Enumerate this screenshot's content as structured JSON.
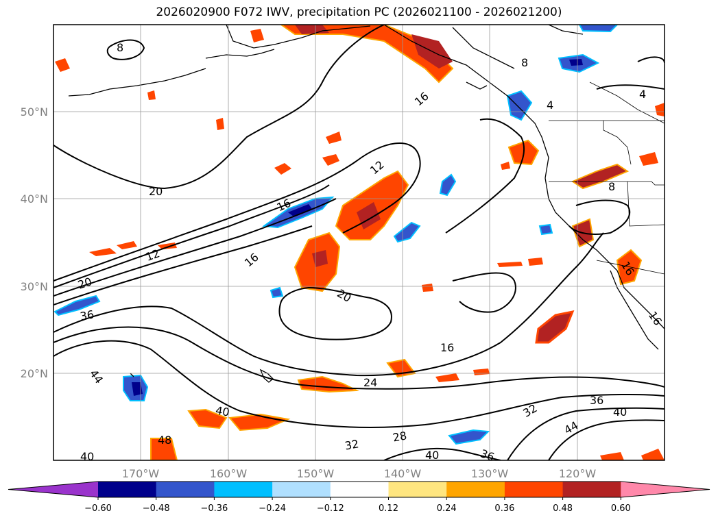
{
  "title": "2026020900 F072 IWV, precipitation PC (2026021100 - 2026021200)",
  "lat_labels": [
    "50°N",
    "40°N",
    "30°N",
    "20°N"
  ],
  "lon_labels": [
    "170°W",
    "160°W",
    "150°W",
    "140°W",
    "130°W",
    "120°W"
  ],
  "contour_labels": [
    "8",
    "16",
    "8",
    "4",
    "4",
    "12",
    "16",
    "16",
    "12",
    "20",
    "20",
    "36",
    "16",
    "20",
    "24",
    "16",
    "36",
    "40",
    "32",
    "44",
    "40",
    "28",
    "32",
    "40",
    "36",
    "48",
    "40",
    "44",
    "16",
    "8"
  ],
  "colorbar": {
    "ticks": [
      "−0.60",
      "−0.48",
      "−0.36",
      "−0.24",
      "−0.12",
      "0.12",
      "0.24",
      "0.36",
      "0.48",
      "0.60"
    ],
    "colors": [
      "#9a33cc",
      "#00008b",
      "#3355cc",
      "#00bfff",
      "#b0e0ff",
      "#ffffff",
      "#ffe680",
      "#ffa500",
      "#ff4500",
      "#b22222",
      "#ff88aa"
    ]
  },
  "map": {
    "lat_range": [
      10,
      60
    ],
    "lon_range": [
      -180,
      -110
    ],
    "projection": "PlateCarree",
    "grid": true
  }
}
